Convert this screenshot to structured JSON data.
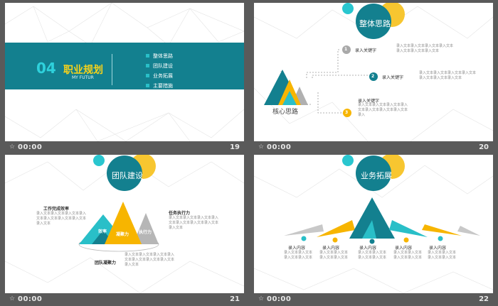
{
  "colors": {
    "teal": "#13808f",
    "yellow": "#f7b500",
    "cyan": "#29bfc8",
    "gray": "#a9a9a9",
    "frame": "#5a5a5a"
  },
  "slides": [
    {
      "number": "19",
      "time": "00:00",
      "chapter_num": "04",
      "title": "职业规划",
      "subtitle": "MY FUTUR",
      "menu": [
        "整体思路",
        "团队建设",
        "业务拓展",
        "主要措施"
      ]
    },
    {
      "number": "20",
      "time": "00:00",
      "heading": "整体思路",
      "center_label": "核心思路",
      "steps": [
        {
          "num": "1",
          "label": "录入关键字"
        },
        {
          "num": "2",
          "label": "录入关键字"
        },
        {
          "num": "3",
          "label": "录入关键字"
        }
      ]
    },
    {
      "number": "21",
      "time": "00:00",
      "heading": "团队建设",
      "left_title": "工作完成效率",
      "right_title": "任务执行力",
      "bottom_title": "团队凝聚力",
      "tri_labels": [
        "效率",
        "凝聚力",
        "执行力"
      ]
    },
    {
      "number": "22",
      "time": "00:00",
      "heading": "业务拓展",
      "items": [
        {
          "num": "1",
          "label": "录入内容"
        },
        {
          "num": "2",
          "label": "录入内容"
        },
        {
          "num": "3",
          "label": "录入内容"
        },
        {
          "num": "4",
          "label": "录入内容"
        },
        {
          "num": "5",
          "label": "录入内容"
        }
      ]
    }
  ]
}
